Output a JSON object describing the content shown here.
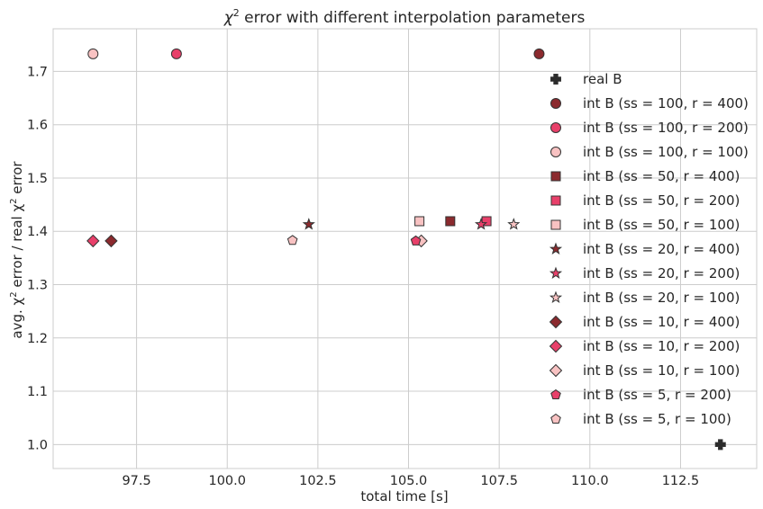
{
  "chart_data": {
    "type": "scatter",
    "title_main": "χ",
    "title_sup": "2",
    "title_rest": " error with different interpolation parameters",
    "xlabel": "total time [s]",
    "ylabel_parts": [
      "avg. χ",
      "2",
      " error / real χ",
      "2",
      " error"
    ],
    "xlim": [
      95.2,
      114.6
    ],
    "ylim": [
      0.955,
      1.78
    ],
    "xticks": [
      97.5,
      100.0,
      102.5,
      105.0,
      107.5,
      110.0,
      112.5
    ],
    "xtick_labels": [
      "97.5",
      "100.0",
      "102.5",
      "105.0",
      "107.5",
      "110.0",
      "112.5"
    ],
    "yticks": [
      1.0,
      1.1,
      1.2,
      1.3,
      1.4,
      1.5,
      1.6,
      1.7
    ],
    "ytick_labels": [
      "1.0",
      "1.1",
      "1.2",
      "1.3",
      "1.4",
      "1.5",
      "1.6",
      "1.7"
    ],
    "grid": true,
    "legend_position": "right",
    "colors": {
      "dark": "#8b2a2e",
      "pink": "#e8406a",
      "light": "#f8c2c2",
      "black": "#2b2b2b",
      "edge": "#333333"
    },
    "series": [
      {
        "name": "real B",
        "marker": "plus",
        "color": "#2b2b2b",
        "points": [
          [
            113.6,
            1.0
          ]
        ]
      },
      {
        "name": "int B (ss = 100, r = 400)",
        "marker": "circle",
        "color": "#8b2a2e",
        "points": [
          [
            108.6,
            1.733
          ]
        ]
      },
      {
        "name": "int B (ss = 100, r = 200)",
        "marker": "circle",
        "color": "#e8406a",
        "points": [
          [
            98.6,
            1.733
          ]
        ]
      },
      {
        "name": "int B (ss = 100, r = 100)",
        "marker": "circle",
        "color": "#f8c2c2",
        "points": [
          [
            96.3,
            1.733
          ]
        ]
      },
      {
        "name": "int B (ss = 50, r = 400)",
        "marker": "square",
        "color": "#8b2a2e",
        "points": [
          [
            106.15,
            1.419
          ]
        ]
      },
      {
        "name": "int B (ss = 50, r = 200)",
        "marker": "square",
        "color": "#e8406a",
        "points": [
          [
            107.15,
            1.419
          ]
        ]
      },
      {
        "name": "int B (ss = 50, r = 100)",
        "marker": "square",
        "color": "#f8c2c2",
        "points": [
          [
            105.3,
            1.419
          ]
        ]
      },
      {
        "name": "int B (ss = 20, r = 400)",
        "marker": "star",
        "color": "#8b2a2e",
        "points": [
          [
            102.25,
            1.413
          ]
        ]
      },
      {
        "name": "int B (ss = 20, r = 200)",
        "marker": "star",
        "color": "#e8406a",
        "points": [
          [
            107.0,
            1.413
          ]
        ]
      },
      {
        "name": "int B (ss = 20, r = 100)",
        "marker": "star",
        "color": "#f8c2c2",
        "points": [
          [
            107.9,
            1.413
          ]
        ]
      },
      {
        "name": "int B (ss = 10, r = 400)",
        "marker": "diamond",
        "color": "#8b2a2e",
        "points": [
          [
            96.8,
            1.382
          ]
        ]
      },
      {
        "name": "int B (ss = 10, r = 200)",
        "marker": "diamond",
        "color": "#e8406a",
        "points": [
          [
            96.3,
            1.382
          ]
        ]
      },
      {
        "name": "int B (ss = 10, r = 100)",
        "marker": "diamond",
        "color": "#f8c2c2",
        "points": [
          [
            105.35,
            1.382
          ]
        ]
      },
      {
        "name": "int B (ss = 5, r = 200)",
        "marker": "pentagon",
        "color": "#e8406a",
        "points": [
          [
            105.2,
            1.382
          ]
        ]
      },
      {
        "name": "int B (ss = 5, r = 100)",
        "marker": "pentagon",
        "color": "#f8c2c2",
        "points": [
          [
            101.8,
            1.383
          ]
        ]
      }
    ]
  }
}
